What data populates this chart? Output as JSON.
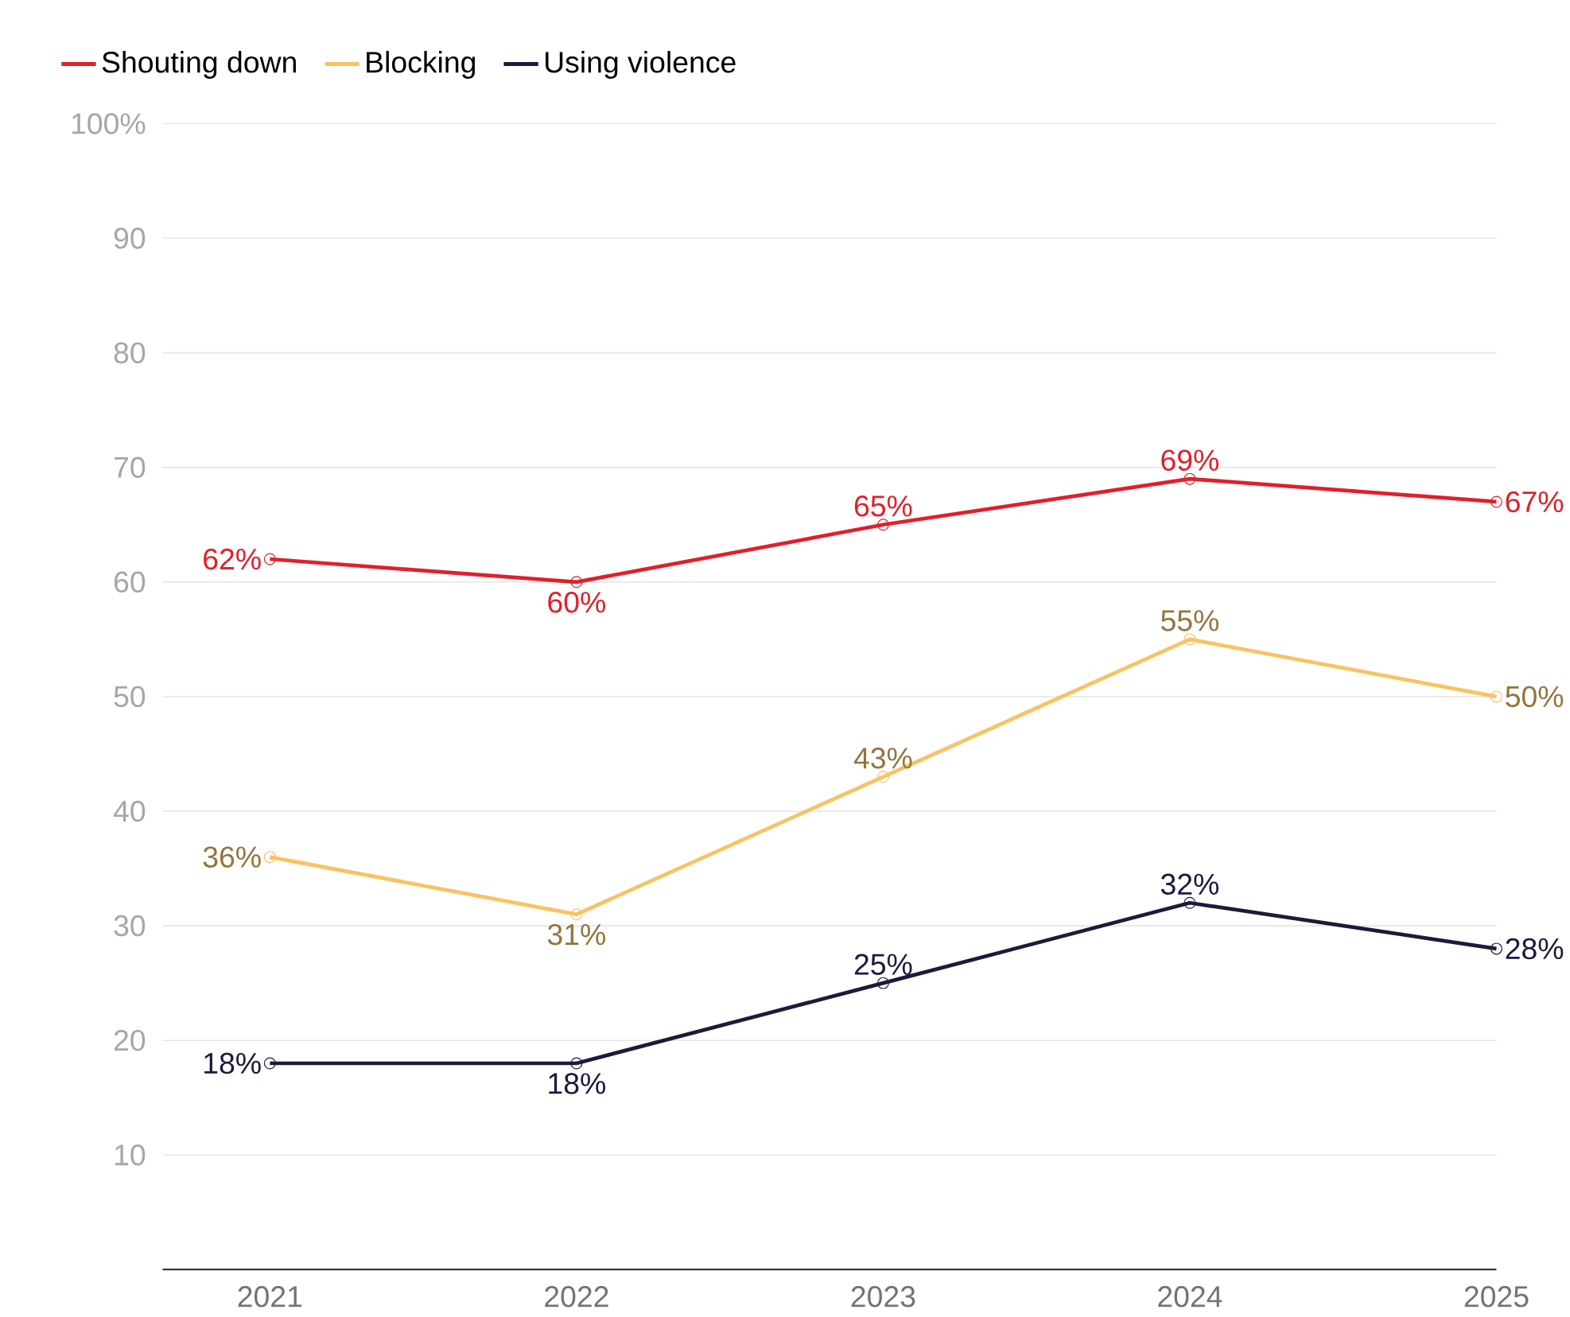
{
  "chart_data": {
    "type": "line",
    "categories": [
      "2021",
      "2022",
      "2023",
      "2024",
      "2025"
    ],
    "series": [
      {
        "name": "Shouting down",
        "color": "#e0202a",
        "values": [
          62,
          60,
          65,
          69,
          67
        ],
        "value_labels": [
          "62%",
          "60%",
          "65%",
          "69%",
          "67%"
        ]
      },
      {
        "name": "Blocking",
        "color": "#f9c262",
        "values": [
          36,
          31,
          43,
          55,
          50
        ],
        "value_labels": [
          "36%",
          "31%",
          "43%",
          "55%",
          "50%"
        ]
      },
      {
        "name": "Using violence",
        "color": "#1c1a3c",
        "values": [
          18,
          18,
          25,
          32,
          28
        ],
        "value_labels": [
          "18%",
          "18%",
          "25%",
          "32%",
          "28%"
        ]
      }
    ],
    "ylim": [
      0,
      100
    ],
    "yticks": [
      {
        "value": 0,
        "label": null
      },
      10,
      20,
      30,
      40,
      50,
      60,
      70,
      80,
      90,
      {
        "value": 100,
        "label": "100%"
      }
    ],
    "grid": "y",
    "legend": "top left",
    "marker": "circle",
    "line_style": "solid"
  }
}
